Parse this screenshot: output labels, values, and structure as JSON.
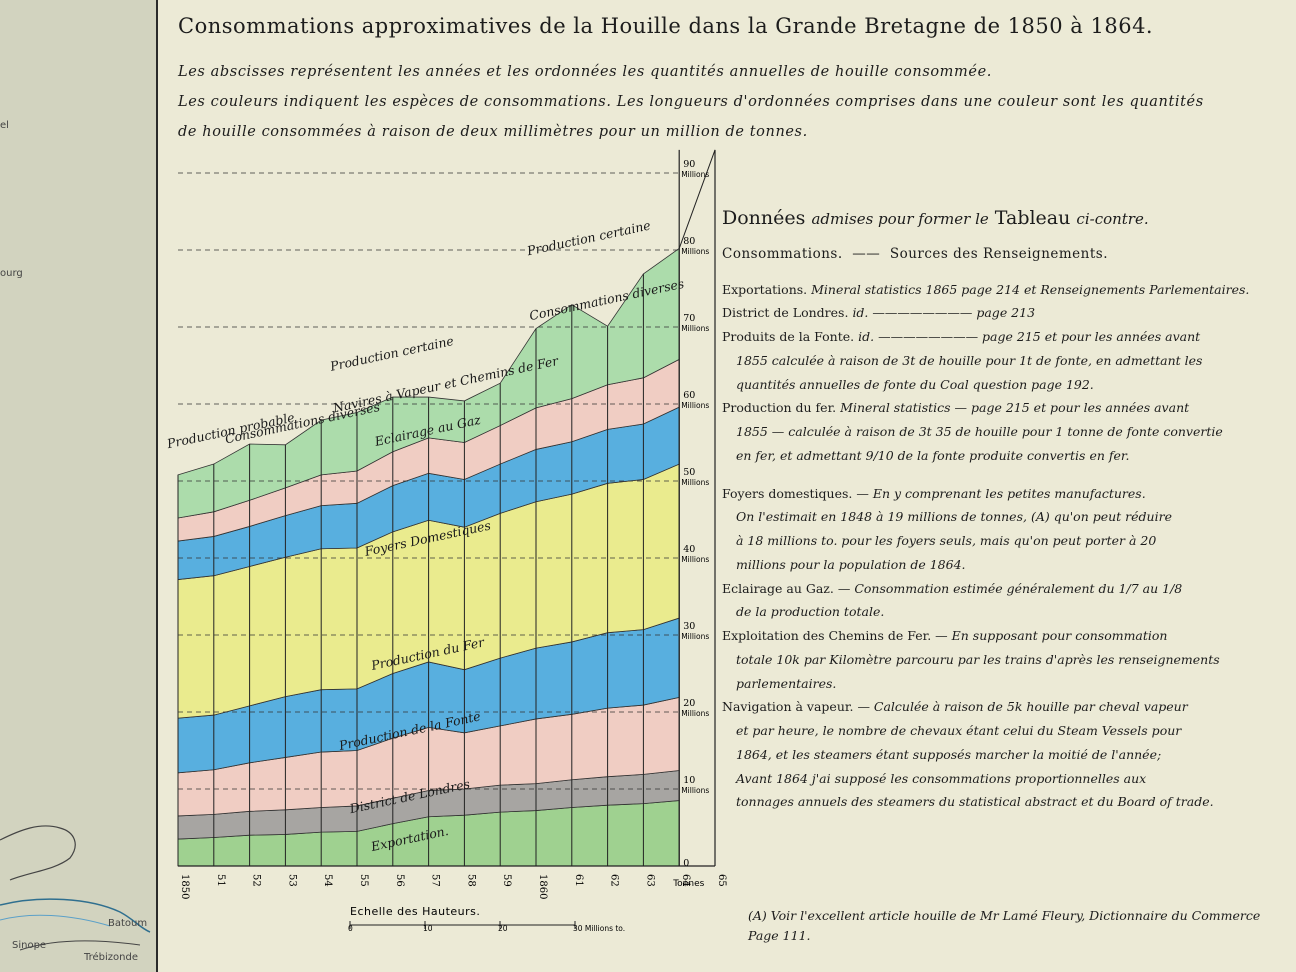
{
  "title": "Consommations approximatives de la Houille dans la Grande Bretagne de 1850 à 1864.",
  "description": [
    "Les abscisses représentent les années et les ordonnées les quantités annuelles de houille consommée.",
    "Les couleurs indiquent les espèces de consommations. Les longueurs d'ordonnées comprises dans une couleur sont les quantités",
    "de houille consommées à raison de deux millimètres pour un million de tonnes."
  ],
  "left_stub_labels": [
    "el",
    "ourg"
  ],
  "left_map_labels": [
    "Batoum",
    "Sinope",
    "Trébizonde"
  ],
  "chart_data": {
    "type": "area",
    "stacked": true,
    "x": [
      "1850",
      "51",
      "52",
      "53",
      "54",
      "55",
      "56",
      "57",
      "58",
      "59",
      "1860",
      "61",
      "62",
      "63",
      "64"
    ],
    "x_extra_label": "65",
    "x_unit": "Tonnes",
    "ylim": [
      0,
      95
    ],
    "y_ticks": [
      {
        "value": 0,
        "label": "0"
      },
      {
        "value": 10,
        "label": "10",
        "unit": "Millions"
      },
      {
        "value": 20,
        "label": "20",
        "unit": "Millions"
      },
      {
        "value": 30,
        "label": "30",
        "unit": "Millions"
      },
      {
        "value": 40,
        "label": "40",
        "unit": "Millions"
      },
      {
        "value": 50,
        "label": "50",
        "unit": "Millions"
      },
      {
        "value": 60,
        "label": "60",
        "unit": "Millions"
      },
      {
        "value": 70,
        "label": "70",
        "unit": "Millions"
      },
      {
        "value": 80,
        "label": "80",
        "unit": "Millions"
      },
      {
        "value": 90,
        "label": "90",
        "unit": "Millions"
      }
    ],
    "series": [
      {
        "name": "Exportation",
        "color": "#9fd190",
        "values": [
          3.5,
          3.7,
          4.0,
          4.1,
          4.4,
          4.5,
          5.5,
          6.4,
          6.6,
          7.0,
          7.2,
          7.6,
          7.9,
          8.1,
          8.5
        ]
      },
      {
        "name": "District de Londres",
        "color": "#a7a5a2",
        "values": [
          3.0,
          3.0,
          3.1,
          3.2,
          3.2,
          3.3,
          3.3,
          3.4,
          3.4,
          3.5,
          3.5,
          3.6,
          3.7,
          3.8,
          3.9
        ]
      },
      {
        "name": "Production de la Fonte",
        "color": "#f0cdc3",
        "values": [
          5.6,
          5.8,
          6.3,
          6.8,
          7.2,
          7.2,
          7.8,
          8.2,
          7.3,
          7.7,
          8.4,
          8.5,
          8.9,
          9.0,
          9.5
        ]
      },
      {
        "name": "Production du Fer",
        "color": "#58afdf",
        "values": [
          7.1,
          7.1,
          7.4,
          7.9,
          8.1,
          8.0,
          8.4,
          8.5,
          8.2,
          8.8,
          9.2,
          9.4,
          9.8,
          9.8,
          10.3
        ]
      },
      {
        "name": "Foyers Domestiques",
        "color": "#eaeb8e",
        "values": [
          18.0,
          18.1,
          18.1,
          18.1,
          18.3,
          18.3,
          18.4,
          18.4,
          18.5,
          18.8,
          19.0,
          19.2,
          19.4,
          19.5,
          20.0
        ]
      },
      {
        "name": "Eclairage au Gaz",
        "color": "#58afdf",
        "values": [
          5.0,
          5.1,
          5.2,
          5.4,
          5.6,
          5.8,
          6.0,
          6.1,
          6.2,
          6.4,
          6.8,
          6.8,
          7.0,
          7.2,
          7.4
        ]
      },
      {
        "name": "Navires à Vapeur et Chemins de Fer",
        "color": "#f0cdc3",
        "values": [
          3.0,
          3.2,
          3.4,
          3.6,
          4.0,
          4.2,
          4.4,
          4.6,
          4.8,
          5.0,
          5.4,
          5.6,
          5.8,
          6.0,
          6.2
        ]
      },
      {
        "name": "Consommations diverses",
        "color": "#acdcab",
        "values": [
          5.6,
          6.2,
          7.3,
          5.6,
          7.1,
          7.6,
          7.1,
          5.3,
          5.4,
          5.5,
          10.3,
          12.2,
          7.6,
          13.5,
          14.4
        ]
      }
    ],
    "band_labels": [
      {
        "text": "Exportation.",
        "x": 6.5,
        "y": 3
      },
      {
        "text": "District de Londres",
        "x": 6.5,
        "y": 8.5
      },
      {
        "text": "Production de la Fonte",
        "x": 6.5,
        "y": 17
      },
      {
        "text": "Production du Fer",
        "x": 7.0,
        "y": 27
      },
      {
        "text": "Foyers Domestiques",
        "x": 7.0,
        "y": 42
      },
      {
        "text": "Eclairage au Gaz",
        "x": 7.0,
        "y": 56
      },
      {
        "text": "Navires à Vapeur et Chemins de Fer",
        "x": 7.5,
        "y": 62
      },
      {
        "text": "Consommations diverses",
        "x": 3.5,
        "y": 57
      },
      {
        "text": "Consommations diverses",
        "x": 12.0,
        "y": 73
      },
      {
        "text": "Production probable",
        "x": 1.5,
        "y": 56
      },
      {
        "text": "Production certaine",
        "x": 6.0,
        "y": 66
      },
      {
        "text": "Production certaine",
        "x": 11.5,
        "y": 81
      }
    ],
    "scale_bar": {
      "title": "Echelle des Hauteurs.",
      "ticks": [
        {
          "value": 0,
          "label": "0"
        },
        {
          "value": 10,
          "label": "10"
        },
        {
          "value": 20,
          "label": "20"
        },
        {
          "value": 30,
          "label": "30 Millions to."
        }
      ]
    }
  },
  "panel": {
    "heading_main": "Données",
    "heading_italic": "admises pour former le",
    "heading_end": "Tableau",
    "heading_tail": "ci-contre.",
    "subheading_left": "Consommations.",
    "subheading_right": "Sources des Renseignements.",
    "rows": [
      {
        "label": "Exportations.",
        "text": "Mineral statistics 1865 page 214 et Renseignements Parlementaires."
      },
      {
        "label": "District de Londres.",
        "text": "id. ———————— page 213"
      },
      {
        "label": "Produits de la Fonte.",
        "text": "id. ———————— page 215 et pour les années avant"
      },
      {
        "label": "",
        "text": "1855 calculée à raison de 3t de houille pour 1t de fonte, en admettant les"
      },
      {
        "label": "",
        "text": "quantités annuelles de fonte du Coal question page 192."
      },
      {
        "label": "Production du fer.",
        "text": "Mineral statistics — page 215 et pour les années avant"
      },
      {
        "label": "",
        "text": "1855 — calculée à raison de 3t 35 de houille pour 1 tonne de fonte convertie"
      },
      {
        "label": "",
        "text": "en fer, et admettant 9/10 de la fonte produite convertis en fer."
      }
    ],
    "notes": [
      {
        "label": "Foyers domestiques.",
        "text": "— En y comprenant les petites manufactures."
      },
      {
        "label": "",
        "text": "On l'estimait en 1848 à 19 millions de tonnes, (A) qu'on peut réduire"
      },
      {
        "label": "",
        "text": "à 18 millions to. pour les foyers seuls, mais qu'on peut porter à 20"
      },
      {
        "label": "",
        "text": "millions pour la population de 1864."
      },
      {
        "label": "Eclairage au Gaz.",
        "text": "— Consommation estimée généralement du 1/7 au 1/8"
      },
      {
        "label": "",
        "text": "de la production totale."
      },
      {
        "label": "Exploitation des Chemins de Fer.",
        "text": "— En supposant pour consommation"
      },
      {
        "label": "",
        "text": "totale 10k par Kilomètre parcouru par les trains d'après les renseignements"
      },
      {
        "label": "",
        "text": "parlementaires."
      },
      {
        "label": "Navigation à vapeur.",
        "text": "— Calculée à raison de 5k houille par cheval vapeur"
      },
      {
        "label": "",
        "text": "et par heure, le nombre de chevaux étant celui du Steam Vessels pour"
      },
      {
        "label": "",
        "text": "1864, et les steamers étant supposés marcher la moitié de l'année;"
      },
      {
        "label": "",
        "text": "Avant 1864 j'ai supposé les consommations proportionnelles aux"
      },
      {
        "label": "",
        "text": "tonnages annuels des steamers du statistical abstract et du Board of trade."
      }
    ]
  },
  "footnote": "(A) Voir l'excellent article houille de Mr Lamé Fleury, Dictionnaire du Commerce Page 111."
}
